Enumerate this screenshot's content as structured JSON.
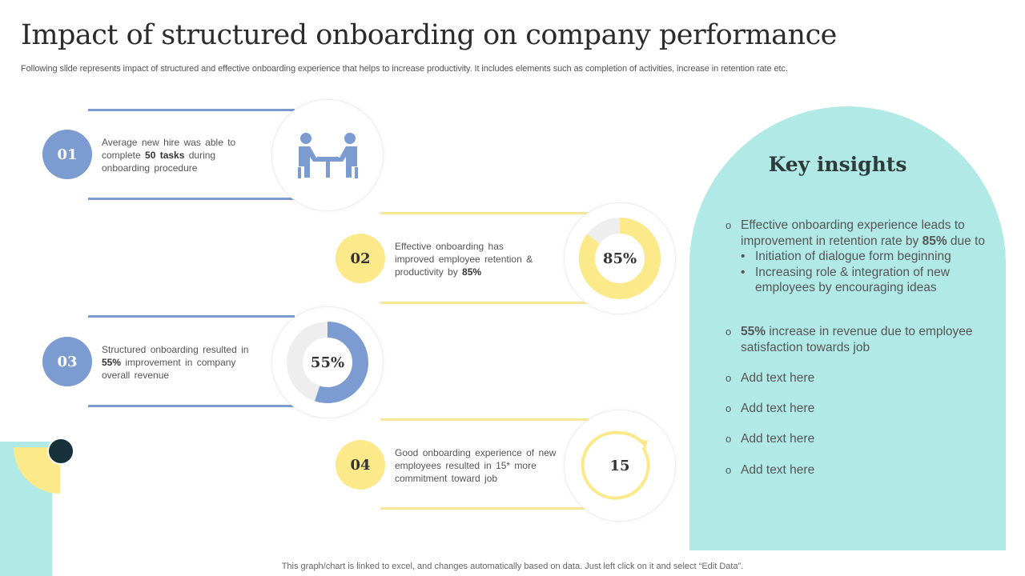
{
  "header": {
    "title": "Impact of structured onboarding on company performance",
    "subtitle": "Following slide represents impact of structured and effective onboarding experience that helps to increase productivity. It includes elements such as completion of activities, increase in retention rate etc."
  },
  "steps": [
    {
      "number": "01",
      "text_before": "Average  new hire was able to complete ",
      "text_bold": "50 tasks",
      "text_after": " during onboarding  procedure",
      "icon": "meeting-people-icon"
    },
    {
      "number": "02",
      "text_before": "Effective  onboarding  has improved  employee retention & productivity  by ",
      "text_bold": "85%",
      "text_after": "",
      "metric_label": "85%",
      "metric_value": 85
    },
    {
      "number": "03",
      "text_before": "Structured onboarding  resulted in ",
      "text_bold": "55%",
      "text_after": " improvement  in company overall  revenue",
      "metric_label": "55%",
      "metric_value": 55
    },
    {
      "number": "04",
      "text_before": "Good onboarding  experience of new employees resulted in 15* more commitment toward job",
      "text_bold": "",
      "text_after": "",
      "metric_label": "15",
      "icon": "cycle-arrow-icon"
    }
  ],
  "insights": {
    "title": "Key insights",
    "items": [
      {
        "bullet": "o",
        "pre": "Effective onboarding experience leads to improvement in retention rate by ",
        "bold": "85%",
        "post": " due to",
        "subs": [
          "Initiation of dialogue form beginning",
          "Increasing role & integration of new employees by encouraging ideas"
        ]
      },
      {
        "bullet": "o",
        "pre": "",
        "bold": "55%",
        "post": " increase in revenue due to employee satisfaction towards job"
      },
      {
        "bullet": "o",
        "pre": "Add text here"
      },
      {
        "bullet": "o",
        "pre": "Add text here"
      },
      {
        "bullet": "o",
        "pre": "Add text here"
      },
      {
        "bullet": "o",
        "pre": "Add text here"
      }
    ],
    "sub_bullet": "•"
  },
  "footer": {
    "note": "This graph/chart is linked to excel,  and changes automatically based on data. Just left click on it and select “Edit Data”."
  },
  "colors": {
    "blue": "#7b9bd1",
    "yellow": "#fbe98a",
    "teal": "#b1e9e6",
    "track": "#eeeeee"
  }
}
